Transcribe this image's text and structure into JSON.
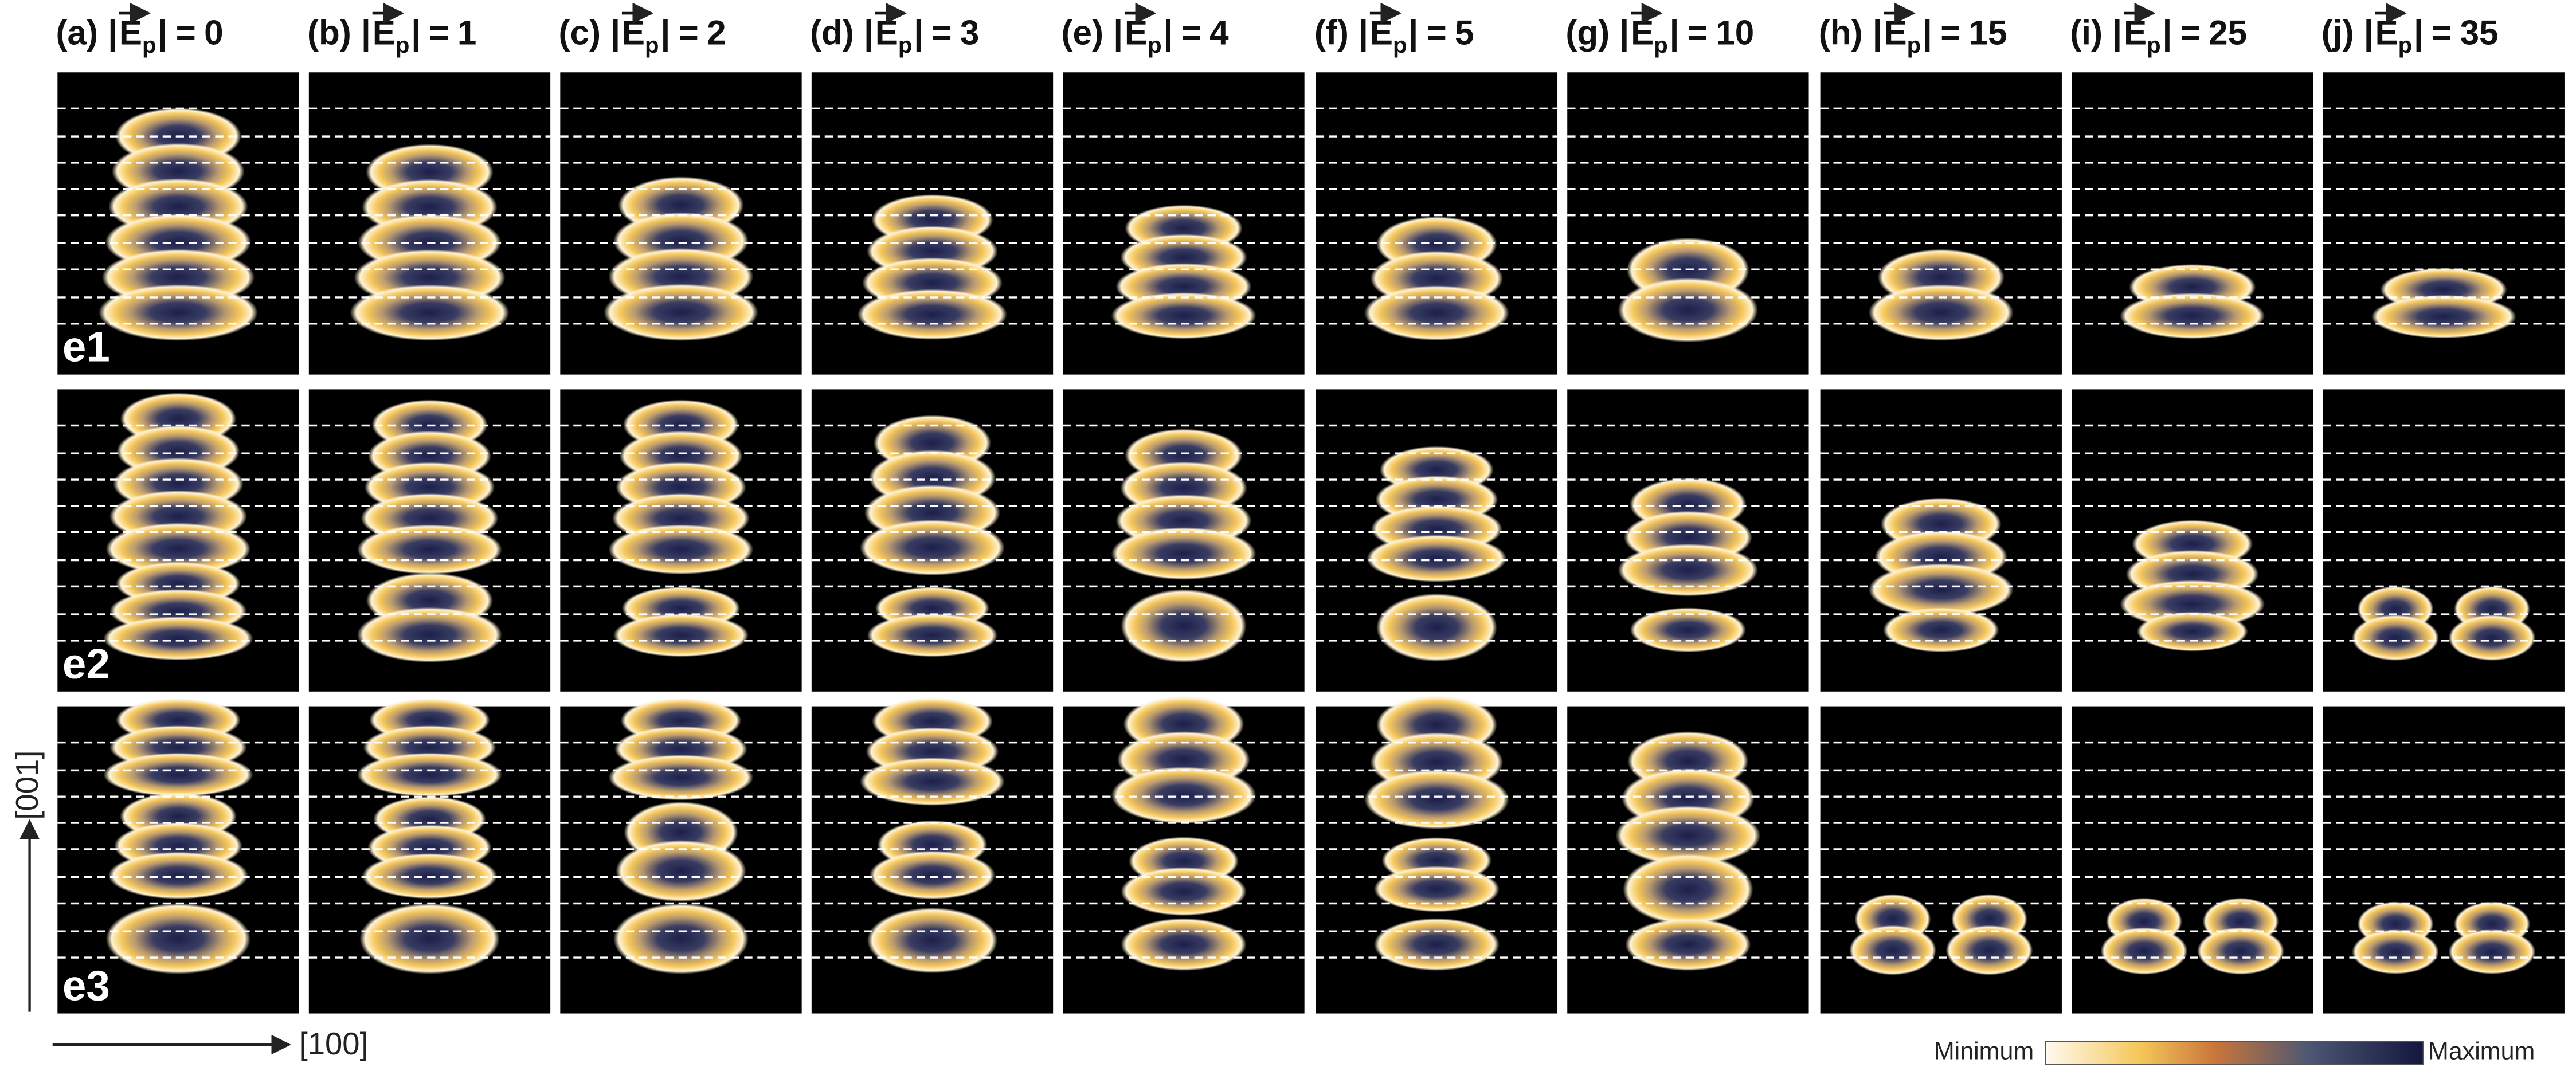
{
  "figure": {
    "columns": [
      {
        "letter": "(a)",
        "value": 0
      },
      {
        "letter": "(b)",
        "value": 1
      },
      {
        "letter": "(c)",
        "value": 2
      },
      {
        "letter": "(d)",
        "value": 3
      },
      {
        "letter": "(e)",
        "value": 4
      },
      {
        "letter": "(f)",
        "value": 5
      },
      {
        "letter": "(g)",
        "value": 10
      },
      {
        "letter": "(h)",
        "value": 15
      },
      {
        "letter": "(i)",
        "value": 25
      },
      {
        "letter": "(j)",
        "value": 35
      }
    ],
    "symbol": "E",
    "subscript": "p",
    "bar": "|",
    "equals": "=",
    "rows": [
      "e1",
      "e2",
      "e3"
    ],
    "axis_vertical": "[001]",
    "axis_horizontal": "[100]",
    "colorbar": {
      "min_label": "Minimum",
      "max_label": "Maximum"
    }
  }
}
